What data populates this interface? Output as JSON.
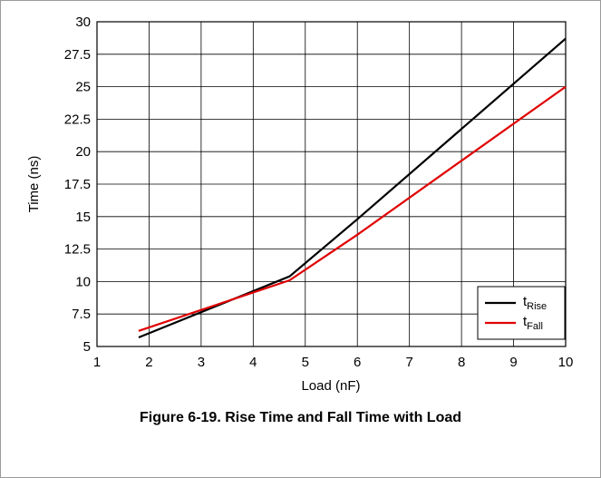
{
  "figure": {
    "caption": "Figure 6-19. Rise Time and Fall Time with Load"
  },
  "chart_data": {
    "type": "line",
    "xlabel": "Load (nF)",
    "ylabel": "Time (ns)",
    "xlim": [
      1,
      10
    ],
    "ylim": [
      5,
      30
    ],
    "x_ticks": [
      1,
      2,
      3,
      4,
      5,
      6,
      7,
      8,
      9,
      10
    ],
    "y_ticks": [
      5,
      7.5,
      10,
      12.5,
      15,
      17.5,
      20,
      22.5,
      25,
      27.5,
      30
    ],
    "y_tick_labels": [
      "5",
      "7.5",
      "10",
      "12.5",
      "15",
      "17.5",
      "20",
      "22.5",
      "25",
      "27.5",
      "30"
    ],
    "grid": true,
    "legend_position": "bottom-right",
    "series": [
      {
        "name": "tRise",
        "legend_main": "t",
        "legend_sub": "Rise",
        "color": "#000000",
        "x": [
          1.8,
          4.7,
          6.0,
          10.0
        ],
        "y": [
          5.7,
          10.4,
          14.8,
          28.7
        ]
      },
      {
        "name": "tFall",
        "legend_main": "t",
        "legend_sub": "Fall",
        "color": "#e00000",
        "x": [
          1.8,
          4.7,
          6.0,
          10.0
        ],
        "y": [
          6.2,
          10.1,
          13.6,
          25.0
        ]
      }
    ]
  }
}
